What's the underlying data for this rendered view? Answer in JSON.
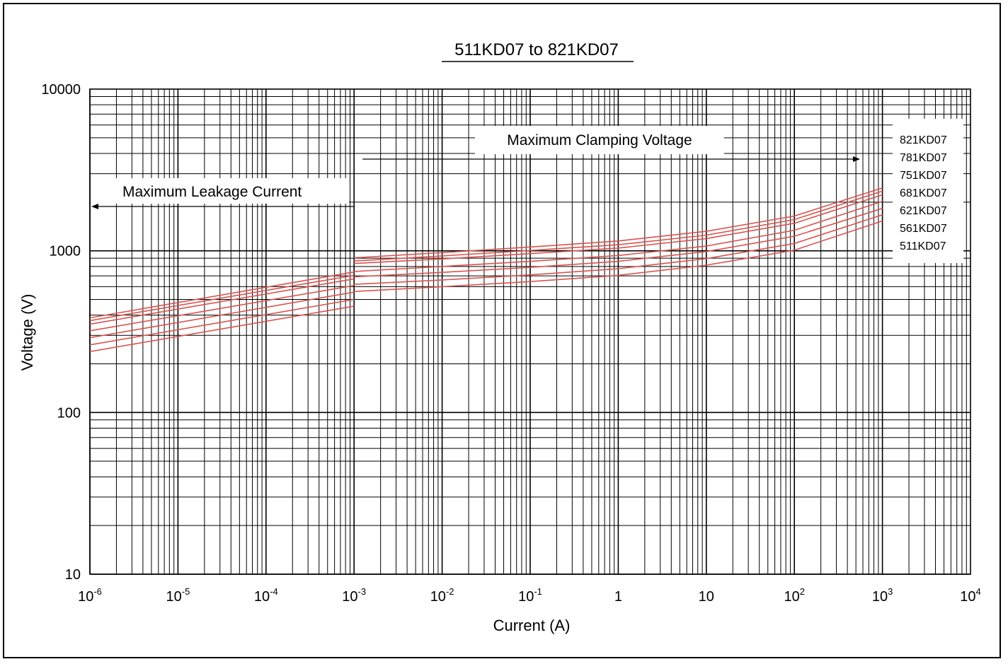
{
  "chart_data": {
    "type": "line",
    "title": "511KD07 to 821KD07",
    "xlabel": "Current (A)",
    "ylabel": "Voltage (V)",
    "x_scale": "log",
    "y_scale": "log",
    "xlim": [
      1e-06,
      10000.0
    ],
    "ylim": [
      10,
      10000
    ],
    "grid": true,
    "x_tick_labels": [
      {
        "base": "10",
        "exp": "-6"
      },
      {
        "base": "10",
        "exp": "-5"
      },
      {
        "base": "10",
        "exp": "-4"
      },
      {
        "base": "10",
        "exp": "-3"
      },
      {
        "base": "10",
        "exp": "-2"
      },
      {
        "base": "10",
        "exp": "-1"
      },
      {
        "base": "1",
        "exp": ""
      },
      {
        "base": "10",
        "exp": ""
      },
      {
        "base": "10",
        "exp": "2"
      },
      {
        "base": "10",
        "exp": "3"
      },
      {
        "base": "10",
        "exp": "4"
      }
    ],
    "y_tick_labels": [
      "10000",
      "1000",
      "100",
      "10"
    ],
    "annotations": {
      "leakage": "Maximum Leakage Current",
      "clamping": "Maximum Clamping Voltage"
    },
    "legend_position": "right",
    "series_color": "#d9534f",
    "series": [
      {
        "name": "821KD07",
        "leakage": {
          "x": [
            1e-06,
            0.001
          ],
          "y": [
            385,
            740
          ]
        },
        "clamping": {
          "x": [
            0.001,
            0.01,
            0.1,
            1,
            10,
            100,
            1000
          ],
          "y": [
            905,
            975,
            1055,
            1150,
            1320,
            1640,
            2450
          ]
        }
      },
      {
        "name": "781KD07",
        "leakage": {
          "x": [
            1e-06,
            0.001
          ],
          "y": [
            370,
            705
          ]
        },
        "clamping": {
          "x": [
            0.001,
            0.01,
            0.1,
            1,
            10,
            100,
            1000
          ],
          "y": [
            865,
            930,
            1005,
            1090,
            1250,
            1560,
            2340
          ]
        }
      },
      {
        "name": "751KD07",
        "leakage": {
          "x": [
            1e-06,
            0.001
          ],
          "y": [
            352,
            670
          ]
        },
        "clamping": {
          "x": [
            0.001,
            0.01,
            0.1,
            1,
            10,
            100,
            1000
          ],
          "y": [
            835,
            890,
            960,
            1040,
            1190,
            1480,
            2220
          ]
        }
      },
      {
        "name": "681KD07",
        "leakage": {
          "x": [
            1e-06,
            0.001
          ],
          "y": [
            320,
            610
          ]
        },
        "clamping": {
          "x": [
            0.001,
            0.01,
            0.1,
            1,
            10,
            100,
            1000
          ],
          "y": [
            745,
            800,
            860,
            935,
            1070,
            1340,
            2020
          ]
        }
      },
      {
        "name": "621KD07",
        "leakage": {
          "x": [
            1e-06,
            0.001
          ],
          "y": [
            290,
            555
          ]
        },
        "clamping": {
          "x": [
            0.001,
            0.01,
            0.1,
            1,
            10,
            100,
            1000
          ],
          "y": [
            690,
            735,
            790,
            860,
            990,
            1230,
            1830
          ]
        }
      },
      {
        "name": "561KD07",
        "leakage": {
          "x": [
            1e-06,
            0.001
          ],
          "y": [
            262,
            500
          ]
        },
        "clamping": {
          "x": [
            0.001,
            0.01,
            0.1,
            1,
            10,
            100,
            1000
          ],
          "y": [
            620,
            660,
            710,
            775,
            895,
            1110,
            1670
          ]
        }
      },
      {
        "name": "511KD07",
        "leakage": {
          "x": [
            1e-06,
            0.001
          ],
          "y": [
            238,
            455
          ]
        },
        "clamping": {
          "x": [
            0.001,
            0.01,
            0.1,
            1,
            10,
            100,
            1000
          ],
          "y": [
            560,
            600,
            645,
            705,
            815,
            1010,
            1530
          ]
        }
      }
    ]
  }
}
